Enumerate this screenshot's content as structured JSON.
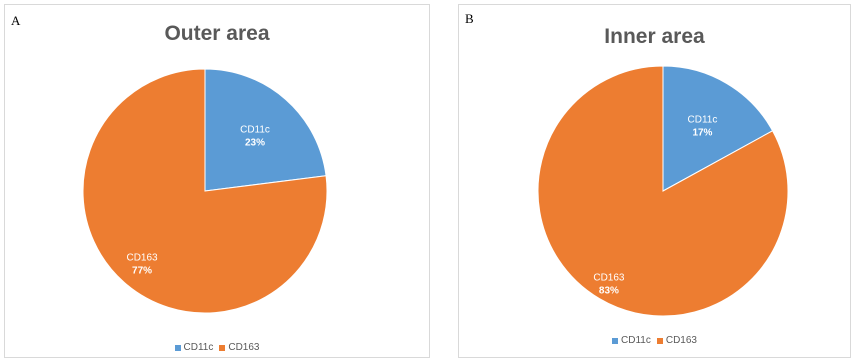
{
  "chart_data": [
    {
      "panel_label": "A",
      "type": "pie",
      "title": "Outer area",
      "categories": [
        "CD11c",
        "CD163"
      ],
      "values": [
        23,
        77
      ],
      "value_labels": [
        "23%",
        "77%"
      ],
      "colors": [
        "#5b9bd5",
        "#ed7d31"
      ],
      "legend": {
        "position": "bottom",
        "entries": [
          "CD11c",
          "CD163"
        ]
      }
    },
    {
      "panel_label": "B",
      "type": "pie",
      "title": "Inner area",
      "categories": [
        "CD11c",
        "CD163"
      ],
      "values": [
        17,
        83
      ],
      "value_labels": [
        "17%",
        "83%"
      ],
      "colors": [
        "#5b9bd5",
        "#ed7d31"
      ],
      "legend": {
        "position": "bottom",
        "entries": [
          "CD11c",
          "CD163"
        ]
      }
    }
  ]
}
